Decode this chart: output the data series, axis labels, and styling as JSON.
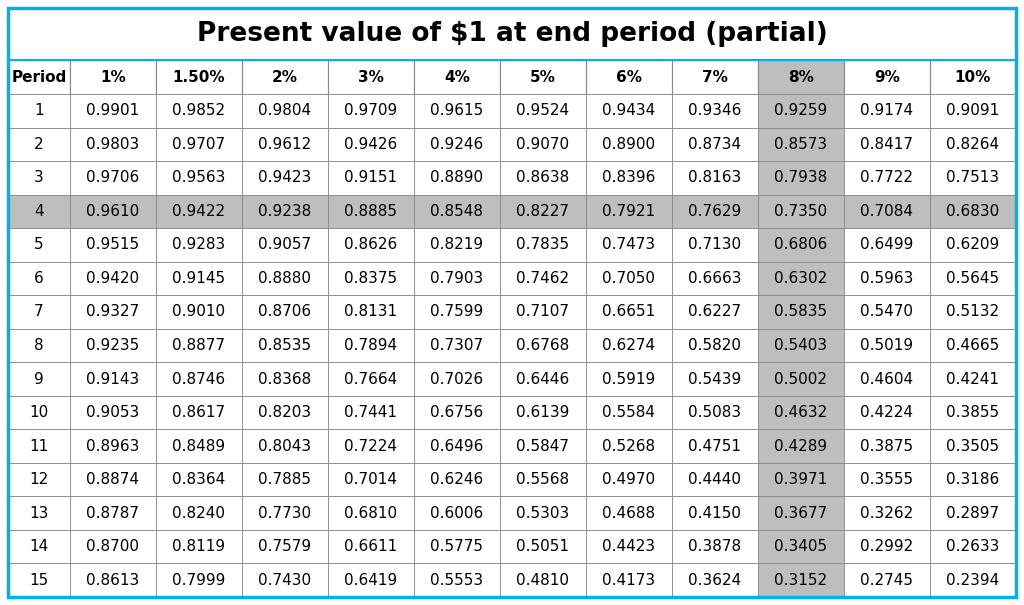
{
  "title": "Present value of $1 at end period (partial)",
  "columns": [
    "Period",
    "1%",
    "1.50%",
    "2%",
    "3%",
    "4%",
    "5%",
    "6%",
    "7%",
    "8%",
    "9%",
    "10%"
  ],
  "rows": [
    [
      1,
      0.9901,
      0.9852,
      0.9804,
      0.9709,
      0.9615,
      0.9524,
      0.9434,
      0.9346,
      0.9259,
      0.9174,
      0.9091
    ],
    [
      2,
      0.9803,
      0.9707,
      0.9612,
      0.9426,
      0.9246,
      0.907,
      0.89,
      0.8734,
      0.8573,
      0.8417,
      0.8264
    ],
    [
      3,
      0.9706,
      0.9563,
      0.9423,
      0.9151,
      0.889,
      0.8638,
      0.8396,
      0.8163,
      0.7938,
      0.7722,
      0.7513
    ],
    [
      4,
      0.961,
      0.9422,
      0.9238,
      0.8885,
      0.8548,
      0.8227,
      0.7921,
      0.7629,
      0.735,
      0.7084,
      0.683
    ],
    [
      5,
      0.9515,
      0.9283,
      0.9057,
      0.8626,
      0.8219,
      0.7835,
      0.7473,
      0.713,
      0.6806,
      0.6499,
      0.6209
    ],
    [
      6,
      0.942,
      0.9145,
      0.888,
      0.8375,
      0.7903,
      0.7462,
      0.705,
      0.6663,
      0.6302,
      0.5963,
      0.5645
    ],
    [
      7,
      0.9327,
      0.901,
      0.8706,
      0.8131,
      0.7599,
      0.7107,
      0.6651,
      0.6227,
      0.5835,
      0.547,
      0.5132
    ],
    [
      8,
      0.9235,
      0.8877,
      0.8535,
      0.7894,
      0.7307,
      0.6768,
      0.6274,
      0.582,
      0.5403,
      0.5019,
      0.4665
    ],
    [
      9,
      0.9143,
      0.8746,
      0.8368,
      0.7664,
      0.7026,
      0.6446,
      0.5919,
      0.5439,
      0.5002,
      0.4604,
      0.4241
    ],
    [
      10,
      0.9053,
      0.8617,
      0.8203,
      0.7441,
      0.6756,
      0.6139,
      0.5584,
      0.5083,
      0.4632,
      0.4224,
      0.3855
    ],
    [
      11,
      0.8963,
      0.8489,
      0.8043,
      0.7224,
      0.6496,
      0.5847,
      0.5268,
      0.4751,
      0.4289,
      0.3875,
      0.3505
    ],
    [
      12,
      0.8874,
      0.8364,
      0.7885,
      0.7014,
      0.6246,
      0.5568,
      0.497,
      0.444,
      0.3971,
      0.3555,
      0.3186
    ],
    [
      13,
      0.8787,
      0.824,
      0.773,
      0.681,
      0.6006,
      0.5303,
      0.4688,
      0.415,
      0.3677,
      0.3262,
      0.2897
    ],
    [
      14,
      0.87,
      0.8119,
      0.7579,
      0.6611,
      0.5775,
      0.5051,
      0.4423,
      0.3878,
      0.3405,
      0.2992,
      0.2633
    ],
    [
      15,
      0.8613,
      0.7999,
      0.743,
      0.6419,
      0.5553,
      0.481,
      0.4173,
      0.3624,
      0.3152,
      0.2745,
      0.2394
    ]
  ],
  "highlighted_col": 9,
  "highlighted_row": 3,
  "title_bg": "#ffffff",
  "row_bg_normal": "#ffffff",
  "row_bg_highlight_col": "#bebebe",
  "row_bg_highlight_row": "#bebebe",
  "border_color": "#999999",
  "text_color": "#000000",
  "outer_border_color": "#00b0f0",
  "title_fontsize": 19,
  "header_fontsize": 11,
  "cell_fontsize": 11
}
